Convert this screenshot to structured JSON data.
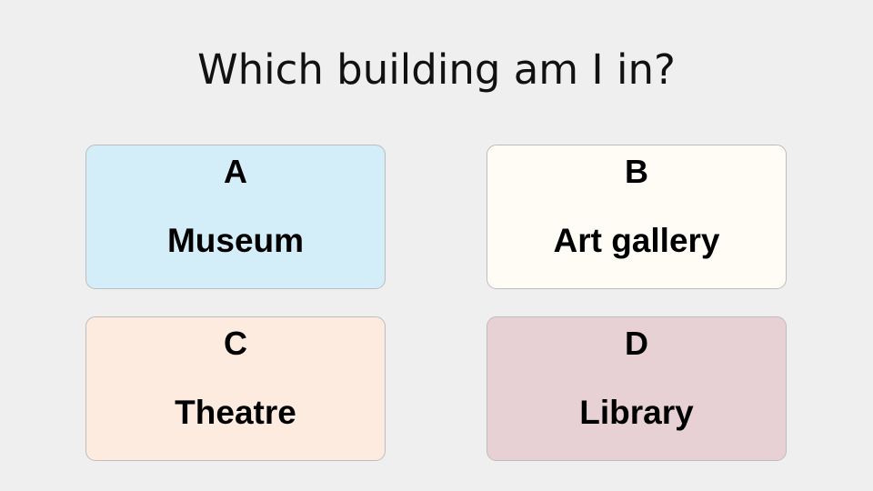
{
  "question": "Which building am I in?",
  "options": [
    {
      "letter": "A",
      "answer": "Museum",
      "color": "#d3edf9"
    },
    {
      "letter": "B",
      "answer": "Art gallery",
      "color": "#fffcf6"
    },
    {
      "letter": "C",
      "answer": "Theatre",
      "color": "#fdebdf"
    },
    {
      "letter": "D",
      "answer": "Library",
      "color": "#e8d1d5"
    }
  ]
}
